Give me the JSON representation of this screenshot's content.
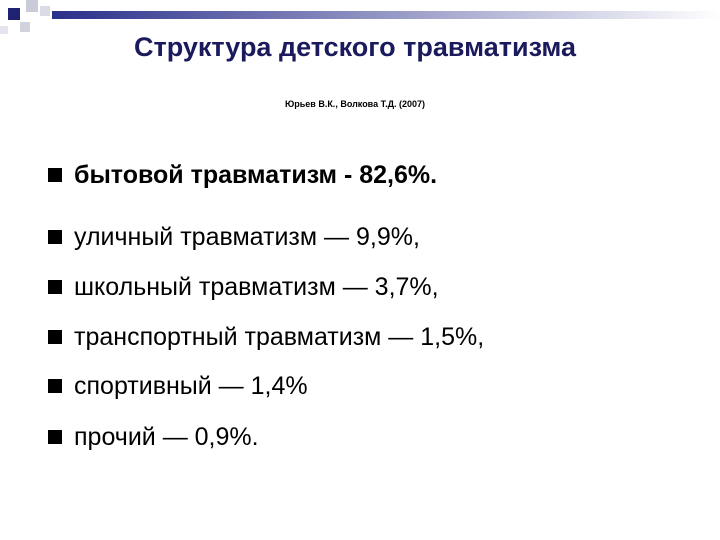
{
  "header": {
    "title": "Структура детского травматизма",
    "subtitle": "Юрьев В.К., Волкова Т.Д. (2007)"
  },
  "bullets": [
    {
      "text": "бытовой травматизм - 82,6%.",
      "bold": true
    },
    {
      "text": "уличный травматизм — 9,9%,",
      "bold": false
    },
    {
      "text": "школьный травматизм — 3,7%,",
      "bold": false
    },
    {
      "text": "транспортный травматизм — 1,5%,",
      "bold": false
    },
    {
      "text": "спортивный — 1,4%",
      "bold": false
    },
    {
      "text": "прочий — 0,9%.",
      "bold": false
    }
  ]
}
